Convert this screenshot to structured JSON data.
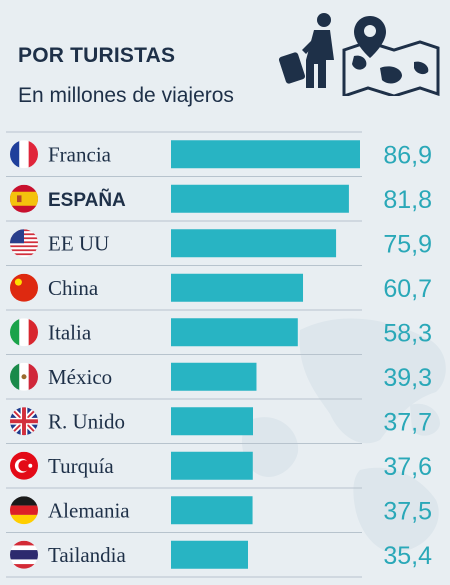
{
  "header": {
    "title": "POR TURISTAS",
    "subtitle": "En millones de viajeros",
    "icons": [
      "traveler-icon",
      "world-map-pin-icon"
    ]
  },
  "colors": {
    "bar": "#28b4c3",
    "value_text": "#2aa8b8",
    "label_text": "#1e3048",
    "row_separator": "#b7c3cd",
    "background": "#e8eef2"
  },
  "chart_data": {
    "type": "bar",
    "orientation": "horizontal",
    "title": "POR TURISTAS",
    "subtitle": "En millones de viajeros",
    "categories": [
      "Francia",
      "ESPAÑA",
      "EE UU",
      "China",
      "Italia",
      "México",
      "R. Unido",
      "Turquía",
      "Alemania",
      "Tailandia"
    ],
    "values": [
      86.9,
      81.8,
      75.9,
      60.7,
      58.3,
      39.3,
      37.7,
      37.6,
      37.5,
      35.4
    ],
    "value_labels": [
      "86,9",
      "81,8",
      "75,9",
      "60,7",
      "58,3",
      "39,3",
      "37,7",
      "37,6",
      "37,5",
      "35,4"
    ],
    "flags": [
      "flag-france-icon",
      "flag-spain-icon",
      "flag-usa-icon",
      "flag-china-icon",
      "flag-italy-icon",
      "flag-mexico-icon",
      "flag-uk-icon",
      "flag-turkey-icon",
      "flag-germany-icon",
      "flag-thailand-icon"
    ],
    "highlight": "ESPAÑA",
    "xlim": [
      0,
      86.9
    ],
    "grid": false,
    "legend": "none"
  }
}
